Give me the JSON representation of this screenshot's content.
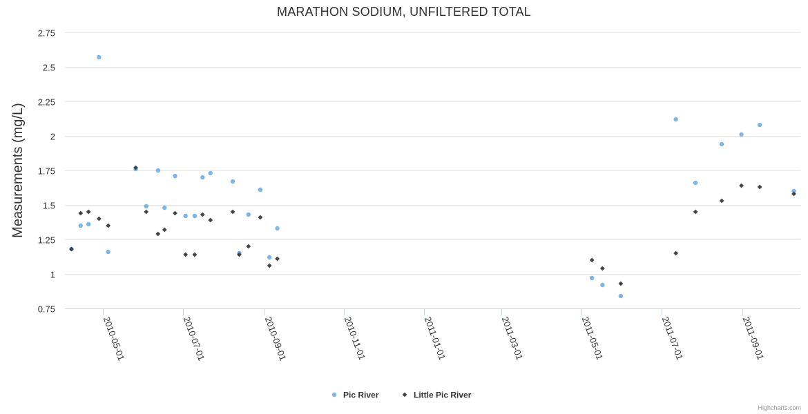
{
  "chart_data": {
    "type": "scatter",
    "title": "MARATHON SODIUM, UNFILTERED TOTAL",
    "xlabel": "",
    "ylabel": "Measurements (mg/L)",
    "x_type": "date",
    "xlim": [
      "2010-04-02",
      "2011-10-15"
    ],
    "ylim": [
      0.75,
      2.75
    ],
    "y_ticks": [
      0.75,
      1,
      1.25,
      1.5,
      1.75,
      2,
      2.25,
      2.5,
      2.75
    ],
    "y_tick_labels": [
      "0.75",
      "1",
      "1.25",
      "1.5",
      "1.75",
      "2",
      "2.25",
      "2.5",
      "2.75"
    ],
    "x_ticks": [
      "2010-05-01",
      "2010-07-01",
      "2010-09-01",
      "2010-11-01",
      "2011-01-01",
      "2011-03-01",
      "2011-05-01",
      "2011-07-01",
      "2011-09-01"
    ],
    "grid": "horizontal",
    "legend_position": "bottom-center",
    "series": [
      {
        "name": "Pic River",
        "color": "#7cb5ec",
        "marker": "circle",
        "points": [
          {
            "x": "2010-04-07",
            "y": 1.18
          },
          {
            "x": "2010-04-14",
            "y": 1.35
          },
          {
            "x": "2010-04-20",
            "y": 1.36
          },
          {
            "x": "2010-04-28",
            "y": 2.57
          },
          {
            "x": "2010-05-05",
            "y": 1.16
          },
          {
            "x": "2010-05-26",
            "y": 1.76
          },
          {
            "x": "2010-06-03",
            "y": 1.49
          },
          {
            "x": "2010-06-12",
            "y": 1.75
          },
          {
            "x": "2010-06-17",
            "y": 1.48
          },
          {
            "x": "2010-06-25",
            "y": 1.71
          },
          {
            "x": "2010-07-03",
            "y": 1.42
          },
          {
            "x": "2010-07-10",
            "y": 1.42
          },
          {
            "x": "2010-07-16",
            "y": 1.7
          },
          {
            "x": "2010-07-22",
            "y": 1.73
          },
          {
            "x": "2010-08-08",
            "y": 1.67
          },
          {
            "x": "2010-08-13",
            "y": 1.15
          },
          {
            "x": "2010-08-20",
            "y": 1.43
          },
          {
            "x": "2010-08-29",
            "y": 1.61
          },
          {
            "x": "2010-09-05",
            "y": 1.12
          },
          {
            "x": "2010-09-11",
            "y": 1.33
          },
          {
            "x": "2011-05-09",
            "y": 0.97
          },
          {
            "x": "2011-05-17",
            "y": 0.92
          },
          {
            "x": "2011-05-31",
            "y": 0.84
          },
          {
            "x": "2011-07-12",
            "y": 2.12
          },
          {
            "x": "2011-07-27",
            "y": 1.66
          },
          {
            "x": "2011-08-16",
            "y": 1.94
          },
          {
            "x": "2011-08-31",
            "y": 2.01
          },
          {
            "x": "2011-09-14",
            "y": 2.08
          },
          {
            "x": "2011-10-10",
            "y": 1.6
          }
        ]
      },
      {
        "name": "Little Pic River",
        "color": "#434348",
        "marker": "diamond",
        "points": [
          {
            "x": "2010-04-07",
            "y": 1.18
          },
          {
            "x": "2010-04-14",
            "y": 1.44
          },
          {
            "x": "2010-04-20",
            "y": 1.45
          },
          {
            "x": "2010-04-28",
            "y": 1.4
          },
          {
            "x": "2010-05-05",
            "y": 1.35
          },
          {
            "x": "2010-05-26",
            "y": 1.77
          },
          {
            "x": "2010-06-03",
            "y": 1.45
          },
          {
            "x": "2010-06-12",
            "y": 1.29
          },
          {
            "x": "2010-06-17",
            "y": 1.32
          },
          {
            "x": "2010-06-25",
            "y": 1.44
          },
          {
            "x": "2010-07-03",
            "y": 1.14
          },
          {
            "x": "2010-07-10",
            "y": 1.14
          },
          {
            "x": "2010-07-16",
            "y": 1.43
          },
          {
            "x": "2010-07-22",
            "y": 1.39
          },
          {
            "x": "2010-08-08",
            "y": 1.45
          },
          {
            "x": "2010-08-13",
            "y": 1.14
          },
          {
            "x": "2010-08-20",
            "y": 1.2
          },
          {
            "x": "2010-08-29",
            "y": 1.41
          },
          {
            "x": "2010-09-05",
            "y": 1.06
          },
          {
            "x": "2010-09-11",
            "y": 1.11
          },
          {
            "x": "2011-05-09",
            "y": 1.1
          },
          {
            "x": "2011-05-17",
            "y": 1.04
          },
          {
            "x": "2011-05-31",
            "y": 0.93
          },
          {
            "x": "2011-07-12",
            "y": 1.15
          },
          {
            "x": "2011-07-27",
            "y": 1.45
          },
          {
            "x": "2011-08-16",
            "y": 1.53
          },
          {
            "x": "2011-08-31",
            "y": 1.64
          },
          {
            "x": "2011-09-14",
            "y": 1.63
          },
          {
            "x": "2011-10-10",
            "y": 1.58
          }
        ]
      }
    ]
  },
  "credits": "Highcharts.com"
}
